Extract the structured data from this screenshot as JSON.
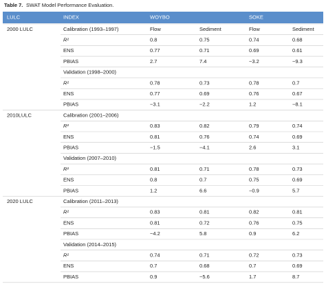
{
  "title": {
    "label": "Table 7.",
    "text": "SWAT Model Performance Evaluation."
  },
  "table": {
    "header": [
      "LULC",
      "INDEX",
      "WOYBO",
      "SOKE"
    ],
    "groups": [
      {
        "lulc": "2000 LULC",
        "sections": [
          {
            "label": "Calibration (1993–1997)",
            "cols": [
              "Flow",
              "Sediment",
              "Flow",
              "Sediment"
            ],
            "rows": [
              [
                "R²",
                "0.8",
                "0.75",
                "0.74",
                "0.68"
              ],
              [
                "ENS",
                "0.77",
                "0.71",
                "0.69",
                "0.61"
              ],
              [
                "PBIAS",
                "2.7",
                "7.4",
                "−3.2",
                "−9.3"
              ]
            ]
          },
          {
            "label": "Validation (1998–2000)",
            "rows": [
              [
                "R²",
                "0.78",
                "0.73",
                "0.78",
                "0.7"
              ],
              [
                "ENS",
                "0.77",
                "0.69",
                "0.76",
                "0.67"
              ],
              [
                "PBIAS",
                "−3.1",
                "−2.2",
                "1.2",
                "−8.1"
              ]
            ]
          }
        ]
      },
      {
        "lulc": "2010LULC",
        "sections": [
          {
            "label": "Calibration (2001–2006)",
            "rows": [
              [
                "R²",
                "0.83",
                "0.82",
                "0.79",
                "0.74"
              ],
              [
                "ENS",
                "0.81",
                "0.76",
                "0.74",
                "0.69"
              ],
              [
                "PBIAS",
                "−1.5",
                "−4.1",
                "2.6",
                "3.1"
              ]
            ]
          },
          {
            "label": "Validation (2007–2010)",
            "rows": [
              [
                "R²",
                "0.81",
                "0.71",
                "0.78",
                "0.73"
              ],
              [
                "ENS",
                "0.8",
                "0.7",
                "0.75",
                "0.69"
              ],
              [
                "PBIAS",
                "1.2",
                "6.6",
                "−0.9",
                "5.7"
              ]
            ]
          }
        ]
      },
      {
        "lulc": "2020 LULC",
        "sections": [
          {
            "label": "Calibration (2011–2013)",
            "rows": [
              [
                "R²",
                "0.83",
                "0.81",
                "0.82",
                "0.81"
              ],
              [
                "ENS",
                "0.81",
                "0.72",
                "0.76",
                "0.75"
              ],
              [
                "PBIAS",
                "−4.2",
                "5.8",
                "0.9",
                "6.2"
              ]
            ]
          },
          {
            "label": "Validation (2014–2015)",
            "rows": [
              [
                "R²",
                "0.74",
                "0.71",
                "0.72",
                "0.73"
              ],
              [
                "ENS",
                "0.7",
                "0.68",
                "0.7",
                "0.69"
              ],
              [
                "PBIAS",
                "0.9",
                "−5.6",
                "1.7",
                "8.7"
              ]
            ]
          }
        ]
      }
    ]
  }
}
